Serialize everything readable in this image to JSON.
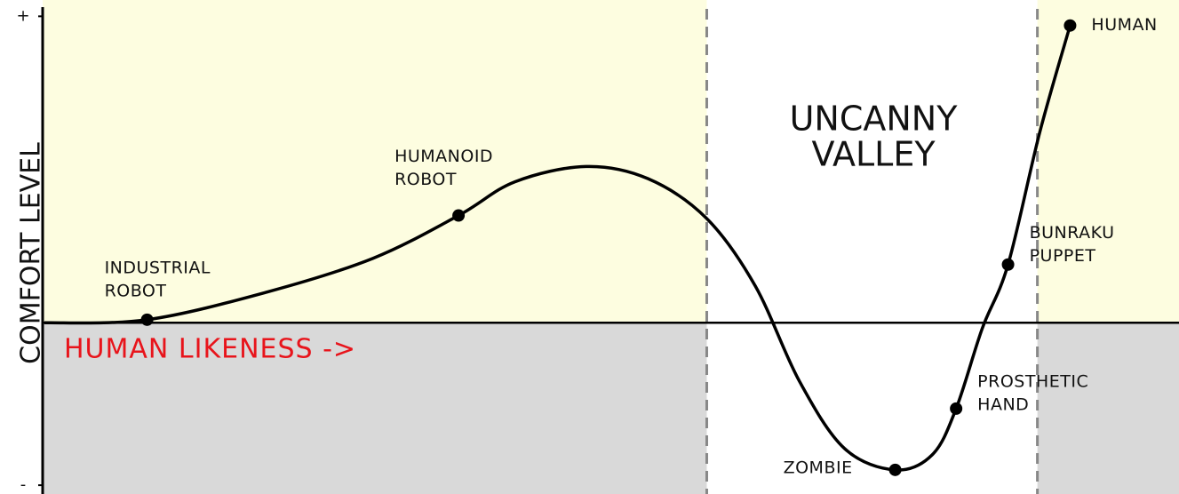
{
  "chart_data": {
    "type": "line",
    "ylabel": "COMFORT LEVEL",
    "xlabel": "HUMAN LIKENESS ->",
    "annotation": [
      "UNCANNY",
      "VALLEY"
    ],
    "xlim": [
      0,
      100
    ],
    "ylim": [
      -0.55,
      1.03
    ],
    "yticks": [
      {
        "value": 1,
        "label": "+"
      },
      {
        "value": -0.53,
        "label": "-"
      }
    ],
    "valley_bounds": [
      58.7,
      88
    ],
    "colors": {
      "line": "#000000",
      "upper": "#fdfde0",
      "lower": "#d9d9d9",
      "valley": "#ffffff",
      "xlabel": "#e8141b",
      "bound": "#888888"
    },
    "series": [
      {
        "x": [
          0,
          9.1,
          19.7,
          29.1,
          36.7,
          41.7,
          48.0,
          53.5,
          58.7,
          63.0,
          66.9,
          70.9,
          75.4,
          78.7,
          80.8,
          83.1,
          85.4,
          88.2,
          90.9
        ],
        "values": [
          0,
          0.01,
          0.1,
          0.21,
          0.35,
          0.46,
          0.51,
          0.47,
          0.34,
          0.12,
          -0.19,
          -0.41,
          -0.48,
          -0.43,
          -0.28,
          -0.02,
          0.19,
          0.62,
          0.97
        ]
      }
    ],
    "labeled_points": [
      {
        "label": [
          "INDUSTRIAL",
          "ROBOT"
        ],
        "x": 9.1,
        "y": 0.01
      },
      {
        "label": [
          "HUMANOID",
          "ROBOT"
        ],
        "x": 36.7,
        "y": 0.35
      },
      {
        "label": [
          "ZOMBIE"
        ],
        "x": 75.4,
        "y": -0.48
      },
      {
        "label": [
          "PROSTHETIC",
          "HAND"
        ],
        "x": 80.8,
        "y": -0.28
      },
      {
        "label": [
          "BUNRAKU",
          "PUPPET"
        ],
        "x": 85.4,
        "y": 0.19
      },
      {
        "label": [
          "HUMAN"
        ],
        "x": 90.9,
        "y": 0.97
      }
    ]
  }
}
